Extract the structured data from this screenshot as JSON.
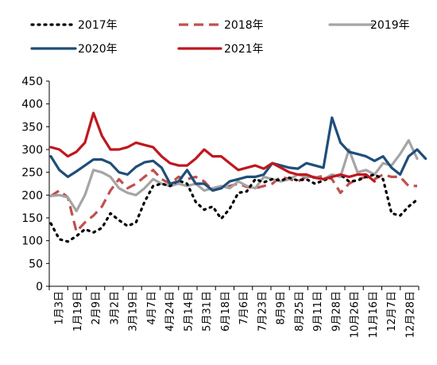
{
  "chart_data": {
    "type": "line",
    "title": "",
    "xlabel": "",
    "ylabel": "",
    "ylim": [
      0,
      450
    ],
    "yticks": [
      0,
      50,
      100,
      150,
      200,
      250,
      300,
      350,
      400,
      450
    ],
    "grid": false,
    "legend_position": "top",
    "x_labels": [
      "1月3日",
      "1月19日",
      "2月9日",
      "3月2日",
      "3月19日",
      "4月7日",
      "4月24日",
      "5月14日",
      "5月31日",
      "6月18日",
      "7月6日",
      "7月23日",
      "8月9日",
      "8月25日",
      "9月11日",
      "9月28日",
      "10月26日",
      "11月16日",
      "12月7日",
      "12月28日"
    ],
    "series": [
      {
        "name": "2017年",
        "color": "#000000",
        "style": "dotted",
        "values": [
          138,
          103,
          98,
          110,
          125,
          118,
          128,
          160,
          145,
          132,
          140,
          185,
          220,
          225,
          220,
          232,
          225,
          185,
          168,
          175,
          148,
          170,
          205,
          208,
          235,
          228,
          235,
          232,
          238,
          232,
          235,
          225,
          232,
          240,
          245,
          230,
          232,
          240,
          245,
          235,
          160,
          155,
          175,
          190
        ]
      },
      {
        "name": "2018年",
        "color": "#c0504d",
        "style": "dashed",
        "values": [
          198,
          210,
          195,
          120,
          140,
          155,
          175,
          210,
          235,
          215,
          225,
          240,
          255,
          235,
          225,
          240,
          235,
          240,
          230,
          210,
          215,
          220,
          225,
          218,
          215,
          220,
          225,
          240,
          235,
          230,
          240,
          238,
          242,
          235,
          205,
          225,
          235,
          240,
          235,
          245,
          240,
          240,
          220,
          220
        ]
      },
      {
        "name": "2019年",
        "color": "#a5a5a5",
        "style": "solid",
        "values": [
          198,
          200,
          195,
          165,
          200,
          255,
          250,
          240,
          215,
          205,
          200,
          215,
          235,
          225,
          220,
          225,
          220,
          225,
          210,
          215,
          220,
          215,
          230,
          220,
          215,
          240,
          235,
          230,
          235,
          245,
          240,
          240,
          235,
          245,
          240,
          300,
          250,
          255,
          245,
          270,
          265,
          290,
          320,
          280
        ]
      },
      {
        "name": "2020年",
        "color": "#1f4e79",
        "style": "solid",
        "values": [
          285,
          255,
          240,
          252,
          265,
          278,
          278,
          270,
          250,
          245,
          262,
          272,
          275,
          260,
          225,
          230,
          255,
          225,
          225,
          210,
          215,
          230,
          235,
          240,
          240,
          245,
          270,
          265,
          260,
          258,
          270,
          265,
          260,
          370,
          315,
          295,
          290,
          285,
          275,
          285,
          260,
          245,
          285,
          300,
          280
        ]
      },
      {
        "name": "2021年",
        "color": "#c0171e",
        "style": "solid",
        "values": [
          305,
          300,
          285,
          295,
          315,
          380,
          330,
          300,
          300,
          305,
          315,
          310,
          305,
          285,
          270,
          265,
          265,
          280,
          300,
          285,
          285,
          270,
          255,
          260,
          265,
          258,
          270,
          260,
          250,
          245,
          245,
          238,
          235,
          240,
          245,
          240,
          245,
          245,
          230
        ]
      }
    ]
  }
}
